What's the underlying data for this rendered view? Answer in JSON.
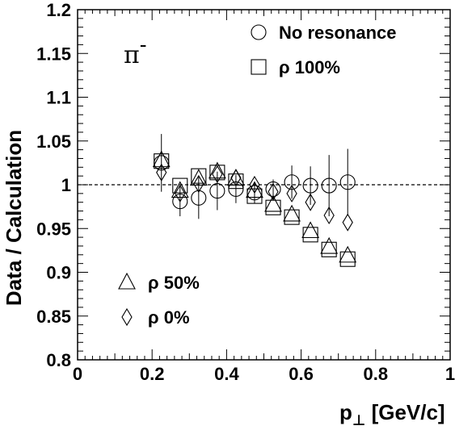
{
  "chart_data": {
    "type": "scatter",
    "xlabel_main": "p",
    "xlabel_sub": "⊥",
    "xlabel_rest": " [GeV/c]",
    "ylabel": "Data / Calculation",
    "annotation": "π",
    "annotation_sup": "-",
    "xlim": [
      0,
      1
    ],
    "ylim": [
      0.8,
      1.2
    ],
    "x_ticks": [
      {
        "v": 0,
        "label": "0"
      },
      {
        "v": 0.2,
        "label": "0.2"
      },
      {
        "v": 0.4,
        "label": "0.4"
      },
      {
        "v": 0.6,
        "label": "0.6"
      },
      {
        "v": 0.8,
        "label": "0.8"
      },
      {
        "v": 1,
        "label": "1"
      }
    ],
    "y_ticks": [
      {
        "v": 0.8,
        "label": "0.8"
      },
      {
        "v": 0.85,
        "label": "0.85"
      },
      {
        "v": 0.9,
        "label": "0.9"
      },
      {
        "v": 0.95,
        "label": "0.95"
      },
      {
        "v": 1.0,
        "label": "1"
      },
      {
        "v": 1.05,
        "label": "1.05"
      },
      {
        "v": 1.1,
        "label": "1.1"
      },
      {
        "v": 1.15,
        "label": "1.15"
      },
      {
        "v": 1.2,
        "label": "1.2"
      }
    ],
    "reference_line": 1.0,
    "series": [
      {
        "name": "No resonance",
        "marker": "circle",
        "x": [
          0.225,
          0.275,
          0.325,
          0.375,
          0.425,
          0.475,
          0.525,
          0.575,
          0.625,
          0.675,
          0.725
        ],
        "y": [
          1.025,
          0.981,
          0.985,
          0.993,
          0.995,
          0.991,
          0.995,
          1.003,
          0.999,
          0.999,
          1.003
        ],
        "err": [
          0.033,
          0.017,
          0.024,
          0.022,
          0.016,
          0.012,
          0.011,
          0.019,
          0.022,
          0.035,
          0.038
        ]
      },
      {
        "name": "ρ 100%",
        "marker": "square",
        "x": [
          0.225,
          0.275,
          0.325,
          0.375,
          0.425,
          0.475,
          0.525,
          0.575,
          0.625,
          0.675,
          0.725
        ],
        "y": [
          1.027,
          0.999,
          1.01,
          1.014,
          1.004,
          0.987,
          0.974,
          0.963,
          0.943,
          0.926,
          0.915
        ]
      },
      {
        "name": "ρ 50%",
        "marker": "triangle",
        "x": [
          0.225,
          0.275,
          0.325,
          0.375,
          0.425,
          0.475,
          0.525,
          0.575,
          0.625,
          0.675,
          0.725
        ],
        "y": [
          1.028,
          0.993,
          1.007,
          1.015,
          1.007,
          0.993,
          0.977,
          0.966,
          0.947,
          0.929,
          0.919
        ]
      },
      {
        "name": "ρ 0%",
        "marker": "diamond",
        "x": [
          0.225,
          0.275,
          0.325,
          0.375,
          0.425,
          0.475,
          0.525,
          0.575,
          0.625,
          0.675,
          0.725
        ],
        "y": [
          1.014,
          0.99,
          1.001,
          1.012,
          1.008,
          1.0,
          0.992,
          0.99,
          0.98,
          0.965,
          0.957
        ]
      }
    ],
    "legend_top": [
      {
        "marker": "circle",
        "label": "No resonance"
      },
      {
        "marker": "square",
        "label": "ρ 100%"
      }
    ],
    "legend_bottom": [
      {
        "marker": "triangle",
        "label": "ρ 50%"
      },
      {
        "marker": "diamond",
        "label": "ρ 0%"
      }
    ]
  }
}
